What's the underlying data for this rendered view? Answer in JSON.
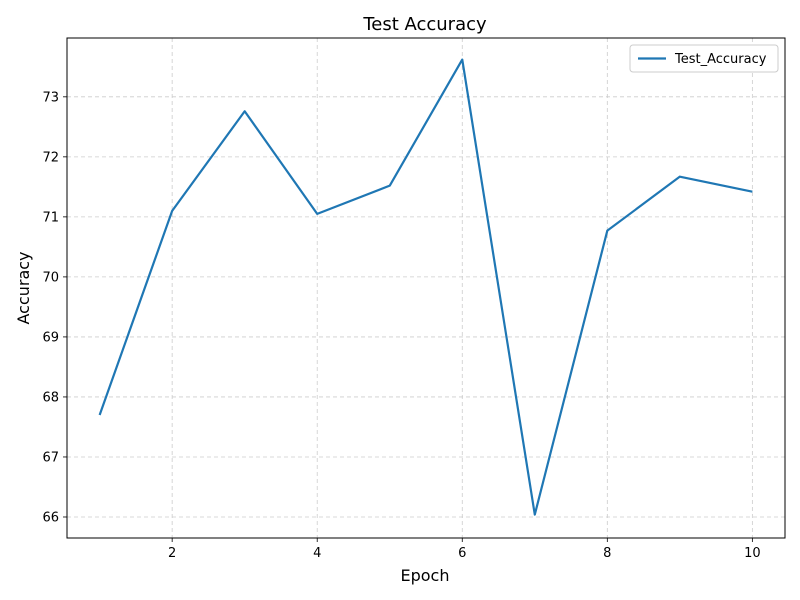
{
  "chart_data": {
    "type": "line",
    "title": "Test Accuracy",
    "xlabel": "Epoch",
    "ylabel": "Accuracy",
    "xlim": [
      0.55,
      10.45
    ],
    "ylim": [
      65.65,
      73.98
    ],
    "xticks": [
      2,
      4,
      6,
      8,
      10
    ],
    "yticks": [
      66,
      67,
      68,
      69,
      70,
      71,
      72,
      73
    ],
    "grid": true,
    "legend_position": "top-right",
    "series": [
      {
        "name": "Test_Accuracy",
        "color": "#1f77b4",
        "x": [
          1,
          2,
          3,
          4,
          5,
          6,
          7,
          8,
          9,
          10
        ],
        "y": [
          67.7,
          71.1,
          72.76,
          71.05,
          71.52,
          73.62,
          66.04,
          70.77,
          71.67,
          71.42
        ]
      }
    ]
  }
}
